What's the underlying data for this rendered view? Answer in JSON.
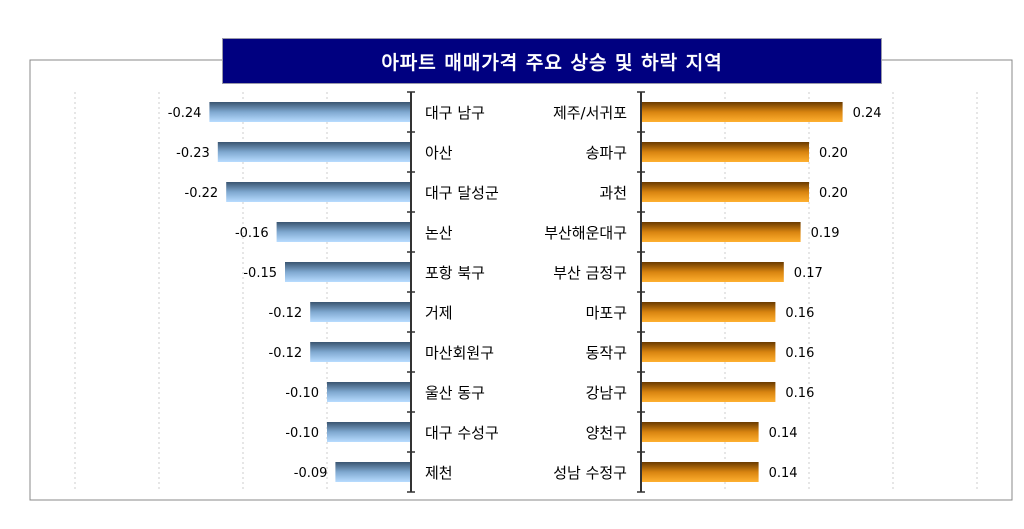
{
  "chart_data": [
    {
      "type": "bar",
      "orientation": "horizontal",
      "title": "아파트 매매가격 주요 상승 및 하락 지역",
      "categories": [
        "대구 남구",
        "아산",
        "대구 달성군",
        "논산",
        "포항 북구",
        "거제",
        "마산회원구",
        "울산 동구",
        "대구 수성구",
        "제천"
      ],
      "values": [
        -0.24,
        -0.23,
        -0.22,
        -0.16,
        -0.15,
        -0.12,
        -0.12,
        -0.1,
        -0.1,
        -0.09
      ],
      "labels": [
        "-0.24",
        "-0.23",
        "-0.22",
        "-0.16",
        "-0.15",
        "-0.12",
        "-0.12",
        "-0.10",
        "-0.10",
        "-0.09"
      ],
      "color": "#7fb0e0",
      "grid": true
    },
    {
      "type": "bar",
      "orientation": "horizontal",
      "categories": [
        "제주/서귀포",
        "송파구",
        "과천",
        "부산해운대구",
        "부산 금정구",
        "마포구",
        "동작구",
        "강남구",
        "양천구",
        "성남 수정구"
      ],
      "values": [
        0.24,
        0.2,
        0.2,
        0.19,
        0.17,
        0.16,
        0.16,
        0.16,
        0.14,
        0.14
      ],
      "labels": [
        "0.24",
        "0.20",
        "0.20",
        "0.19",
        "0.17",
        "0.16",
        "0.16",
        "0.16",
        "0.14",
        "0.14"
      ],
      "color": "#f0a020",
      "grid": true
    }
  ]
}
